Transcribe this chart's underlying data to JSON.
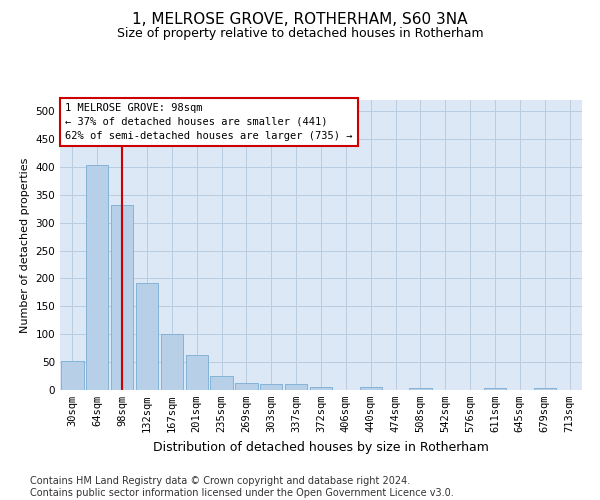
{
  "title": "1, MELROSE GROVE, ROTHERHAM, S60 3NA",
  "subtitle": "Size of property relative to detached houses in Rotherham",
  "xlabel": "Distribution of detached houses by size in Rotherham",
  "ylabel": "Number of detached properties",
  "categories": [
    "30sqm",
    "64sqm",
    "98sqm",
    "132sqm",
    "167sqm",
    "201sqm",
    "235sqm",
    "269sqm",
    "303sqm",
    "337sqm",
    "372sqm",
    "406sqm",
    "440sqm",
    "474sqm",
    "508sqm",
    "542sqm",
    "576sqm",
    "611sqm",
    "645sqm",
    "679sqm",
    "713sqm"
  ],
  "values": [
    52,
    403,
    332,
    191,
    100,
    62,
    25,
    13,
    10,
    10,
    6,
    0,
    5,
    0,
    4,
    0,
    0,
    4,
    0,
    4,
    0
  ],
  "bar_color": "#b8cfe8",
  "bar_edge_color": "#7aadd4",
  "highlight_bar_index": 2,
  "highlight_line_color": "#cc0000",
  "annotation_text": "1 MELROSE GROVE: 98sqm\n← 37% of detached houses are smaller (441)\n62% of semi-detached houses are larger (735) →",
  "annotation_box_color": "#ffffff",
  "annotation_box_edge_color": "#cc0000",
  "ylim": [
    0,
    520
  ],
  "yticks": [
    0,
    50,
    100,
    150,
    200,
    250,
    300,
    350,
    400,
    450,
    500
  ],
  "footer_text": "Contains HM Land Registry data © Crown copyright and database right 2024.\nContains public sector information licensed under the Open Government Licence v3.0.",
  "bg_color": "#ffffff",
  "plot_bg_color": "#dce8f5",
  "grid_color": "#b8cce0",
  "title_fontsize": 11,
  "subtitle_fontsize": 9,
  "xlabel_fontsize": 9,
  "ylabel_fontsize": 8,
  "tick_fontsize": 7.5,
  "annotation_fontsize": 7.5,
  "footer_fontsize": 7
}
